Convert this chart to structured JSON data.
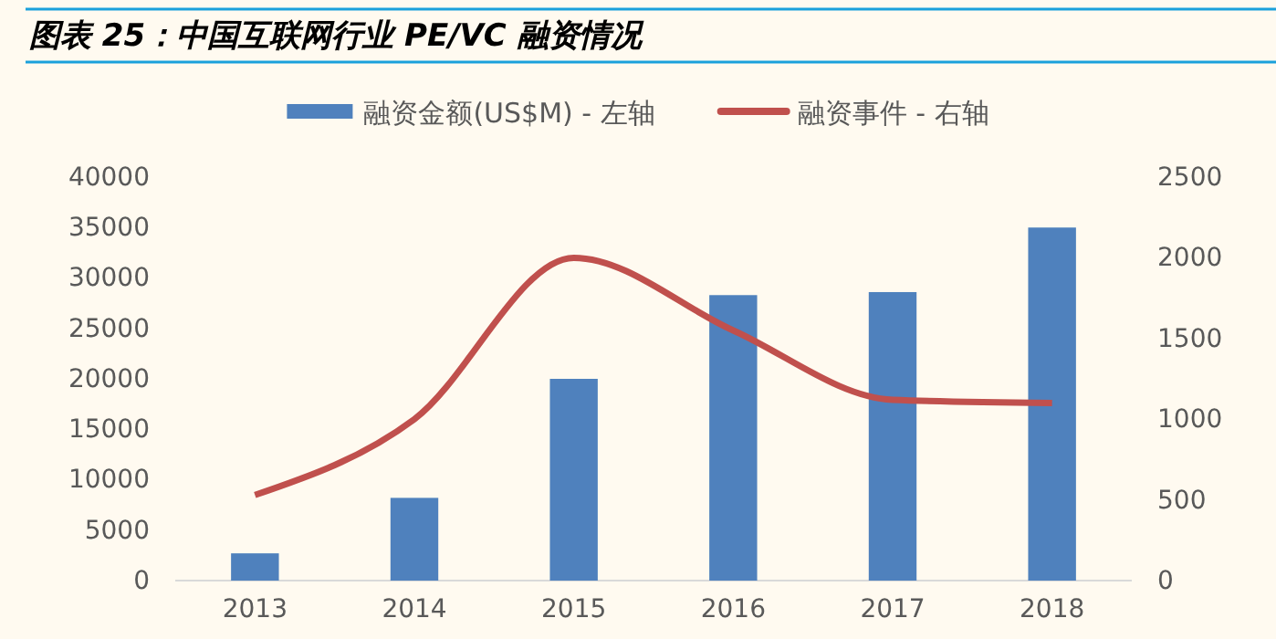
{
  "chart_data": {
    "type": "bar",
    "title": "图表 25：中国互联网行业 PE/VC 融资情况",
    "categories": [
      "2013",
      "2014",
      "2015",
      "2016",
      "2017",
      "2018"
    ],
    "series": [
      {
        "name": "融资金额(US$M) - 左轴",
        "color": "#4f81bd",
        "values": [
          2700,
          8200,
          20000,
          28300,
          28600,
          35000
        ]
      },
      {
        "name": "融资事件 - 右轴",
        "type": "line",
        "axis": "y2",
        "color": "#c0504d",
        "values": [
          530,
          1000,
          2000,
          1550,
          1120,
          1100
        ]
      }
    ],
    "ylim": [
      0,
      40000
    ],
    "yticks": [
      0,
      5000,
      10000,
      15000,
      20000,
      25000,
      30000,
      35000,
      40000
    ],
    "y2lim": [
      0,
      2500
    ],
    "y2ticks": [
      0,
      500,
      1000,
      1500,
      2000,
      2500
    ],
    "grid": false,
    "legend": "top",
    "marker": "none",
    "line_style": "solid"
  }
}
